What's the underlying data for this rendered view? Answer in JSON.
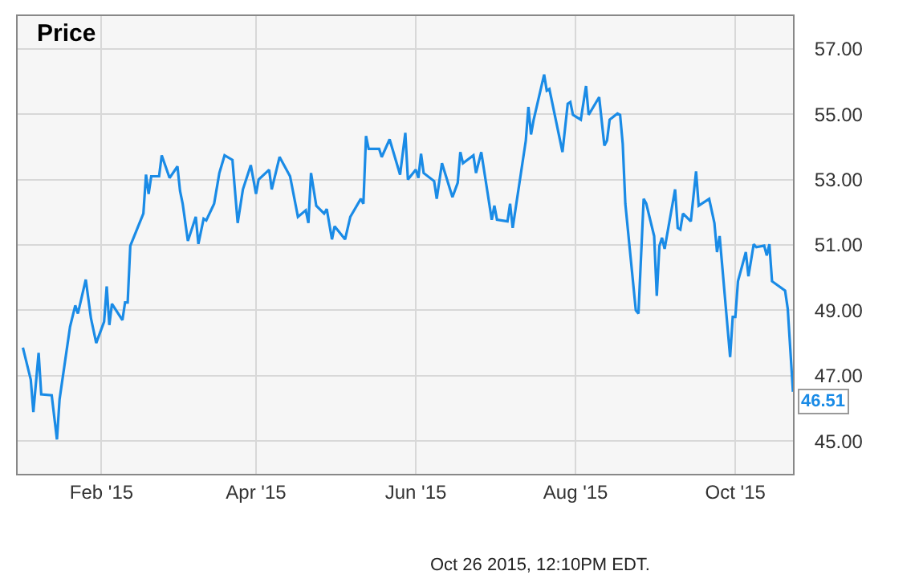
{
  "chart_data": {
    "type": "line",
    "title": "Price",
    "x": [
      "2015-01-02",
      "2015-01-05",
      "2015-01-06",
      "2015-01-08",
      "2015-01-09",
      "2015-01-13",
      "2015-01-15",
      "2015-01-16",
      "2015-01-20",
      "2015-01-22",
      "2015-01-23",
      "2015-01-26",
      "2015-01-28",
      "2015-01-30",
      "2015-02-02",
      "2015-02-03",
      "2015-02-04",
      "2015-02-05",
      "2015-02-09",
      "2015-02-10",
      "2015-02-11",
      "2015-02-12",
      "2015-02-17",
      "2015-02-18",
      "2015-02-19",
      "2015-02-20",
      "2015-02-23",
      "2015-02-24",
      "2015-02-27",
      "2015-03-02",
      "2015-03-03",
      "2015-03-04",
      "2015-03-06",
      "2015-03-09",
      "2015-03-10",
      "2015-03-12",
      "2015-03-13",
      "2015-03-16",
      "2015-03-18",
      "2015-03-20",
      "2015-03-23",
      "2015-03-25",
      "2015-03-27",
      "2015-03-30",
      "2015-04-01",
      "2015-04-02",
      "2015-04-06",
      "2015-04-07",
      "2015-04-10",
      "2015-04-14",
      "2015-04-17",
      "2015-04-20",
      "2015-04-21",
      "2015-04-22",
      "2015-04-24",
      "2015-04-27",
      "2015-04-28",
      "2015-04-30",
      "2015-05-01",
      "2015-05-05",
      "2015-05-07",
      "2015-05-11",
      "2015-05-12",
      "2015-05-13",
      "2015-05-14",
      "2015-05-18",
      "2015-05-19",
      "2015-05-22",
      "2015-05-26",
      "2015-05-28",
      "2015-05-29",
      "2015-06-01",
      "2015-06-02",
      "2015-06-03",
      "2015-06-04",
      "2015-06-08",
      "2015-06-09",
      "2015-06-11",
      "2015-06-15",
      "2015-06-17",
      "2015-06-18",
      "2015-06-19",
      "2015-06-23",
      "2015-06-24",
      "2015-06-26",
      "2015-06-30",
      "2015-07-01",
      "2015-07-02",
      "2015-07-06",
      "2015-07-07",
      "2015-07-08",
      "2015-07-13",
      "2015-07-14",
      "2015-07-15",
      "2015-07-16",
      "2015-07-20",
      "2015-07-21",
      "2015-07-22",
      "2015-07-27",
      "2015-07-29",
      "2015-07-30",
      "2015-07-31",
      "2015-08-03",
      "2015-08-05",
      "2015-08-06",
      "2015-08-10",
      "2015-08-12",
      "2015-08-13",
      "2015-08-14",
      "2015-08-17",
      "2015-08-18",
      "2015-08-19",
      "2015-08-20",
      "2015-08-24",
      "2015-08-25",
      "2015-08-27",
      "2015-08-28",
      "2015-08-31",
      "2015-09-01",
      "2015-09-02",
      "2015-09-03",
      "2015-09-04",
      "2015-09-08",
      "2015-09-09",
      "2015-09-10",
      "2015-09-11",
      "2015-09-14",
      "2015-09-16",
      "2015-09-17",
      "2015-09-21",
      "2015-09-23",
      "2015-09-24",
      "2015-09-25",
      "2015-09-29",
      "2015-09-30",
      "2015-10-01",
      "2015-10-02",
      "2015-10-05",
      "2015-10-06",
      "2015-10-08",
      "2015-10-09",
      "2015-10-12",
      "2015-10-13",
      "2015-10-14",
      "2015-10-15",
      "2015-10-20",
      "2015-10-21",
      "2015-10-23"
    ],
    "series": [
      {
        "color": "#1a8be6",
        "values": [
          47.86,
          46.88,
          45.89,
          47.7,
          46.43,
          46.4,
          45.05,
          46.28,
          48.5,
          49.15,
          48.9,
          49.94,
          48.75,
          48.0,
          48.65,
          49.73,
          48.55,
          49.2,
          48.7,
          49.24,
          49.24,
          50.97,
          51.96,
          53.15,
          52.56,
          53.1,
          53.1,
          53.74,
          53.05,
          53.4,
          52.65,
          52.26,
          51.12,
          51.86,
          51.03,
          51.8,
          51.75,
          52.26,
          53.2,
          53.74,
          53.6,
          51.67,
          52.7,
          53.44,
          52.56,
          53.0,
          53.3,
          52.7,
          53.69,
          53.1,
          51.86,
          52.06,
          51.67,
          53.2,
          52.2,
          51.96,
          52.1,
          51.17,
          51.57,
          51.17,
          51.86,
          52.41,
          52.26,
          54.33,
          53.94,
          53.94,
          53.69,
          54.23,
          53.15,
          54.43,
          53.0,
          53.3,
          53.05,
          53.79,
          53.2,
          52.95,
          52.41,
          53.5,
          52.46,
          52.9,
          53.84,
          53.5,
          53.74,
          53.2,
          53.84,
          51.77,
          52.2,
          51.77,
          51.72,
          52.26,
          51.52,
          54.19,
          55.22,
          54.38,
          54.83,
          56.21,
          55.72,
          55.77,
          53.84,
          55.32,
          55.37,
          54.98,
          54.83,
          55.86,
          54.98,
          55.52,
          54.04,
          54.19,
          54.83,
          55.02,
          54.98,
          54.09,
          52.26,
          49.0,
          48.9,
          52.41,
          52.26,
          51.27,
          49.44,
          50.97,
          51.22,
          50.88,
          52.7,
          51.52,
          51.47,
          51.96,
          51.72,
          53.25,
          52.2,
          52.41,
          51.67,
          50.78,
          51.27,
          47.57,
          48.8,
          48.8,
          49.89,
          50.78,
          50.04,
          51.02,
          50.93,
          50.98,
          50.68,
          51.02,
          49.89,
          49.6,
          49.05,
          46.51
        ],
        "value_labels": [
          null,
          null,
          null,
          null,
          null,
          null,
          null,
          null,
          null,
          null,
          null,
          null,
          null,
          null,
          null,
          null,
          null,
          null,
          null,
          null,
          null,
          null,
          null,
          null,
          null,
          null,
          null,
          null,
          null,
          null,
          null,
          null,
          null,
          null,
          null,
          null,
          null,
          null,
          null,
          null,
          null,
          null,
          null,
          null,
          null,
          null,
          null,
          null,
          null,
          null,
          null,
          null,
          null,
          null,
          null,
          null,
          null,
          null,
          null,
          null,
          null,
          null,
          null,
          null,
          null,
          null,
          null,
          null,
          null,
          null,
          null,
          null,
          null,
          null,
          null,
          null,
          null,
          null,
          null,
          null,
          null,
          null,
          null,
          null,
          null,
          null,
          null,
          null,
          null,
          null,
          null,
          null,
          null,
          null,
          null,
          null,
          null,
          null,
          null,
          null,
          null,
          null,
          null,
          null,
          null,
          null,
          null,
          null,
          null,
          null,
          null,
          null,
          null,
          null,
          null,
          null,
          null,
          null,
          null,
          null,
          null,
          null,
          null,
          null,
          null,
          null,
          null,
          null,
          null,
          null,
          null,
          null,
          null,
          null,
          null,
          null,
          null,
          null,
          null,
          null,
          null,
          null,
          null,
          null,
          null,
          null,
          null,
          "46.51"
        ]
      }
    ],
    "xlim": [
      "2014-12-31",
      "2015-10-23"
    ],
    "xticks": [
      {
        "value": "2015-02-01",
        "label": "Feb '15"
      },
      {
        "value": "2015-04-01",
        "label": "Apr '15"
      },
      {
        "value": "2015-06-01",
        "label": "Jun '15"
      },
      {
        "value": "2015-08-01",
        "label": "Aug '15"
      },
      {
        "value": "2015-10-01",
        "label": "Oct '15"
      }
    ],
    "ylim": [
      44,
      58
    ],
    "yticks": [
      {
        "value": 45,
        "label": "45.00"
      },
      {
        "value": 47,
        "label": "47.00"
      },
      {
        "value": 49,
        "label": "49.00"
      },
      {
        "value": 51,
        "label": "51.00"
      },
      {
        "value": 53,
        "label": "53.00"
      },
      {
        "value": 55,
        "label": "55.00"
      },
      {
        "value": 57,
        "label": "57.00"
      }
    ],
    "grid": true,
    "marker": "none",
    "line_style": "solid",
    "annotations": [
      "Oct 26 2015, 12:10PM EDT."
    ]
  }
}
